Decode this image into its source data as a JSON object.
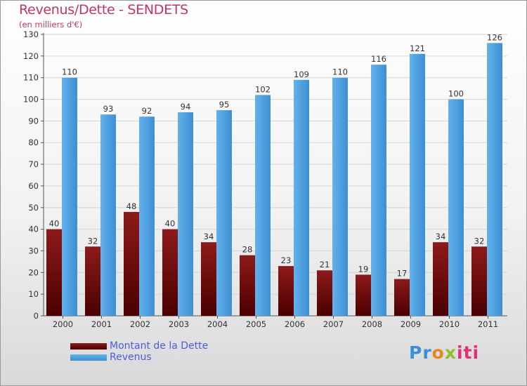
{
  "header": {
    "title": "Revenus/Dette - SENDETS",
    "subtitle": "(en milliers d'€)"
  },
  "colors": {
    "title": "#c0346b",
    "dette": "#7a0a0a",
    "revenus": "#4fa3e3",
    "legend_text": "#4a5de0"
  },
  "chart_data": {
    "type": "bar",
    "title": "Revenus/Dette - SENDETS",
    "subtitle": "(en milliers d'€)",
    "categories": [
      "2000",
      "2001",
      "2002",
      "2003",
      "2004",
      "2005",
      "2006",
      "2007",
      "2008",
      "2009",
      "2010",
      "2011"
    ],
    "series": [
      {
        "name": "Montant de la Dette",
        "values": [
          40,
          32,
          48,
          40,
          34,
          28,
          23,
          21,
          19,
          17,
          34,
          32
        ]
      },
      {
        "name": "Revenus",
        "values": [
          110,
          93,
          92,
          94,
          95,
          102,
          109,
          110,
          116,
          121,
          100,
          126
        ]
      }
    ],
    "yticks": [
      0,
      10,
      20,
      30,
      40,
      50,
      60,
      70,
      80,
      90,
      100,
      110,
      120,
      130
    ],
    "ylim": [
      0,
      130
    ],
    "grid": true,
    "legend_position": "bottom-left",
    "data_labels": true
  },
  "legend": {
    "items": [
      {
        "label": "Montant de la Dette"
      },
      {
        "label": "Revenus"
      }
    ]
  },
  "logo": {
    "text": "Proxiti",
    "parts": [
      "Pr",
      "o",
      "x",
      "iti"
    ]
  }
}
